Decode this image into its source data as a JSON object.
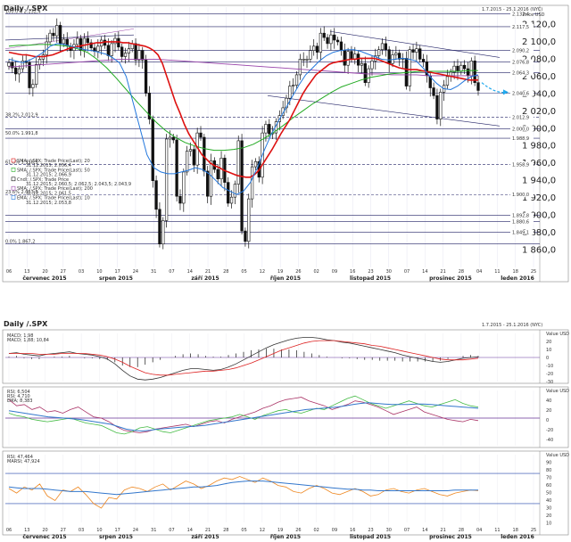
{
  "main_panel": {
    "title": "Daily /.SPX",
    "date_range": "1.7.2015 - 25.1.2016 (NYC)",
    "y_unit_label": "Price\nUSD",
    "legend": [
      "SMA; /.SPX; Trade Price(Last); 20",
      "31.12.2015; 2.056,4",
      "SMA; /.SPX; Trade Price(Last); 50",
      "31.12.2015; 2.066,9",
      "Cndl; /.SPX; Trade Price",
      "31.12.2015; 2.060,5; 2.062,5; 2.043,5; 2.043,9",
      "SMA; /.SPX; Trade Price(Last); 200",
      "31.12.2015; 2.061,5",
      "EMA; /.SPX; Trade Price(Last); 10",
      "31.12.2015; 2.053,8"
    ]
  },
  "macd_panel": {
    "title": "Daily /.SPX",
    "date_range": "1.7.2015 - 25.1.2016 (NYC)",
    "legend": [
      "MACD; 1,98",
      "MACD; 1,88; 10,84"
    ],
    "ticks": [
      "Value\nUSD",
      "20",
      "10",
      "0",
      "-10",
      "-20",
      "-30"
    ]
  },
  "rsi_panel": {
    "legend": [
      "RSI; 6,504",
      "RSI; 4,710",
      "EMA; 8,383"
    ],
    "ticks": [
      "Value\nUSD",
      "40",
      "20",
      "0",
      "-20",
      "-40"
    ]
  },
  "stoch_panel": {
    "legend": [
      "RSI; 47,464",
      "MARSI; 47,924"
    ],
    "ticks": [
      "Value\nUSD",
      "90",
      "80",
      "70",
      "60",
      "50",
      "40",
      "30",
      "20",
      "10"
    ]
  },
  "fib_labels": [
    "100.0%  2.132,4",
    "38.2%  2.012,9",
    "50.0%  1.991,8",
    "61.8%  1.958,9",
    "23.6%  2.053,8",
    "0.0%  1.867,2"
  ],
  "price_labels": [
    "2.132,4",
    "2.117,5",
    "2.090,2",
    "2.076,8",
    "2.064,3",
    "2.040,6",
    "2.012,9",
    "2.000,0",
    "1.988,9",
    "1.958,9",
    "1.900,0",
    "1.892,8",
    "1.880,6",
    "1.849,1"
  ],
  "x_axis": {
    "day_ticks": [
      "06",
      "13",
      "20",
      "27",
      "03",
      "10",
      "17",
      "24",
      "31",
      "07",
      "14",
      "21",
      "28",
      "05",
      "12",
      "19",
      "26",
      "02",
      "09",
      "16",
      "23",
      "30",
      "07",
      "14",
      "21",
      "28",
      "04",
      "11",
      "18",
      "25"
    ],
    "months": [
      "červenec 2015",
      "srpen 2015",
      "září 2015",
      "říjen 2015",
      "listopad 2015",
      "prosinec 2015",
      "leden 2016"
    ]
  },
  "colors": {
    "sma20": "#dd1111",
    "sma50": "#22aa22",
    "sma200": "#9944aa",
    "ema10": "#2277dd",
    "candle": "#111111",
    "arrow": "#22aaee",
    "level_line": "#222266"
  },
  "chart_data": {
    "type": "candlestick",
    "title": "Daily /.SPX",
    "ylim": [
      1840,
      2140
    ],
    "y_ticks": [
      1860,
      1880,
      1900,
      1920,
      1940,
      1960,
      1980,
      2000,
      2020,
      2040,
      2060,
      2080,
      2100,
      2120
    ],
    "y_tick_labels": [
      "1 860,0",
      "1 880,0",
      "1 900,0",
      "1 920,0",
      "1 940,0",
      "1 960,0",
      "1 980,0",
      "2 000,0",
      "2 020,0",
      "2 040,0",
      "2 060,0",
      "2 080,0",
      "2 100,0",
      "2 120,0"
    ],
    "levels": [
      2132.4,
      2117.5,
      2090.2,
      2076.8,
      2064.3,
      2040.6,
      2012.9,
      2000.0,
      1988.9,
      1958.9,
      1924,
      1900.0,
      1892.8,
      1880.6,
      1867.2
    ],
    "dashed_levels": [
      2012.9,
      1958.9,
      1924
    ],
    "closes": [
      2076,
      2070,
      2063,
      2069,
      2078,
      2076,
      2047,
      2051,
      2074,
      2080,
      2085,
      2100,
      2110,
      2107,
      2119,
      2098,
      2103,
      2095,
      2090,
      2097,
      2104,
      2090,
      2104,
      2099,
      2093,
      2089,
      2095,
      2102,
      2096,
      2084,
      2098,
      2104,
      2094,
      2083,
      2087,
      2092,
      2098,
      2079,
      2090,
      2079,
      2041,
      2011,
      1940,
      1907,
      1867,
      1894,
      1988,
      1990,
      1987,
      1922,
      1914,
      1950,
      1974,
      1976,
      1958,
      1995,
      1990,
      1951,
      1922,
      1963,
      1953,
      1942,
      1966,
      1938,
      1914,
      1921,
      1936,
      1986,
      1882,
      1870,
      1919,
      1956,
      1962,
      1944,
      1995,
      2005,
      1994,
      1995,
      2008,
      2015,
      2024,
      2035,
      2049,
      2050,
      2062,
      2080,
      2080,
      2080,
      2090,
      2095,
      2088,
      2110,
      2105,
      2098,
      2108,
      2102,
      2100,
      2090,
      2073,
      2089,
      2080,
      2086,
      2073,
      2075,
      2053,
      2069,
      2078,
      2084,
      2091,
      2098,
      2091,
      2075,
      2085,
      2087,
      2080,
      2081,
      2049,
      2091,
      2088,
      2092,
      2080,
      2077,
      2061,
      2047,
      2038,
      2011,
      2042,
      2050,
      2060,
      2065,
      2072,
      2066,
      2073,
      2069,
      2061,
      2078,
      2053,
      2044
    ],
    "sma20": [
      2088,
      2087,
      2086,
      2085,
      2085,
      2084,
      2083,
      2083,
      2083,
      2084,
      2085,
      2087,
      2089,
      2091,
      2093,
      2094,
      2095,
      2096,
      2097,
      2098,
      2099,
      2099,
      2100,
      2100,
      2100,
      2100,
      2099,
      2099,
      2098,
      2097,
      2096,
      2095,
      2093,
      2090,
      2085,
      2075,
      2060,
      2045,
      2030,
      2018,
      2005,
      1994,
      1986,
      1978,
      1970,
      1965,
      1960,
      1957,
      1955,
      1952,
      1950,
      1948,
      1946,
      1945,
      1944,
      1944,
      1947,
      1952,
      1960,
      1968,
      1976,
      1985,
      1994,
      2002,
      2010,
      2020,
      2030,
      2040,
      2048,
      2055,
      2062,
      2066,
      2070,
      2074,
      2076,
      2077,
      2078,
      2079,
      2080,
      2080,
      2081,
      2081,
      2081,
      2081,
      2080,
      2078,
      2076,
      2074,
      2072,
      2070,
      2069,
      2068,
      2068,
      2068,
      2067,
      2066,
      2065,
      2064,
      2063,
      2062,
      2061,
      2060,
      2059,
      2058,
      2057,
      2056,
      2056,
      2056
    ],
    "sma50": [
      2095,
      2096,
      2096,
      2097,
      2097,
      2096,
      2095,
      2092,
      2088,
      2080,
      2070,
      2058,
      2045,
      2032,
      2020,
      2008,
      1998,
      1990,
      1984,
      1980,
      1977,
      1975,
      1975,
      1976,
      1978,
      1982,
      1988,
      1995,
      2003,
      2012,
      2020,
      2028,
      2035,
      2042,
      2048,
      2052,
      2056,
      2059,
      2061,
      2063,
      2064,
      2065,
      2066,
      2066,
      2066,
      2066,
      2066,
      2067,
      2067
    ],
    "sma200": [
      2071,
      2072,
      2073,
      2074,
      2075,
      2076,
      2077,
      2078,
      2079,
      2080,
      2080,
      2080,
      2080,
      2079,
      2078,
      2077,
      2076,
      2075,
      2074,
      2073,
      2072,
      2071,
      2070,
      2069,
      2068,
      2067,
      2066,
      2065,
      2064,
      2063,
      2063,
      2062,
      2062,
      2062,
      2061,
      2061,
      2061,
      2061,
      2061
    ],
    "ema10": [
      2080,
      2078,
      2076,
      2079,
      2083,
      2088,
      2095,
      2098,
      2097,
      2095,
      2093,
      2091,
      2090,
      2088,
      2086,
      2082,
      2076,
      2060,
      2030,
      2000,
      1970,
      1955,
      1950,
      1948,
      1948,
      1950,
      1952,
      1955,
      1953,
      1948,
      1940,
      1932,
      1928,
      1924,
      1928,
      1938,
      1955,
      1975,
      1993,
      2008,
      2022,
      2036,
      2050,
      2062,
      2070,
      2078,
      2084,
      2088,
      2090,
      2091,
      2091,
      2089,
      2086,
      2083,
      2080,
      2079,
      2080,
      2081,
      2080,
      2078,
      2070,
      2060,
      2052,
      2046,
      2045,
      2049,
      2055,
      2060,
      2062
    ],
    "forecast_arrow": [
      2053,
      2042
    ],
    "subpanels": [
      {
        "name": "MACD",
        "ylim": [
          -30,
          30
        ],
        "macd": [
          5,
          6,
          4,
          3,
          2,
          4,
          5,
          6,
          7,
          5,
          4,
          3,
          1,
          -2,
          -8,
          -16,
          -23,
          -27,
          -28,
          -27,
          -25,
          -22,
          -19,
          -16,
          -14,
          -14,
          -15,
          -16,
          -15,
          -12,
          -8,
          -3,
          2,
          7,
          12,
          16,
          19,
          22,
          24,
          25,
          25,
          24,
          22,
          21,
          19,
          18,
          16,
          14,
          12,
          10,
          8,
          6,
          3,
          1,
          -1,
          -3,
          -5,
          -6,
          -5,
          -3,
          -1,
          0,
          1
        ],
        "signal": [
          5,
          5,
          5,
          5,
          4,
          4,
          4,
          5,
          5,
          5,
          5,
          4,
          3,
          1,
          -2,
          -6,
          -11,
          -15,
          -19,
          -21,
          -22,
          -22,
          -21,
          -20,
          -19,
          -18,
          -17,
          -17,
          -16,
          -15,
          -13,
          -10,
          -7,
          -3,
          1,
          5,
          9,
          12,
          15,
          18,
          20,
          21,
          21,
          21,
          20,
          19,
          18,
          17,
          15,
          14,
          12,
          10,
          8,
          6,
          4,
          2,
          0,
          -2,
          -3,
          -3,
          -3,
          -2,
          -1
        ],
        "histogram": [
          1,
          2,
          -1,
          -2,
          -2,
          0,
          1,
          1,
          2,
          0,
          -1,
          -1,
          -2,
          -3,
          -6,
          -10,
          -12,
          -12,
          -9,
          -6,
          -3,
          0,
          2,
          4,
          5,
          4,
          2,
          1,
          1,
          3,
          5,
          7,
          9,
          10,
          11,
          11,
          10,
          10,
          9,
          7,
          5,
          3,
          1,
          0,
          -1,
          -1,
          -2,
          -3,
          -3,
          -4,
          -4,
          -4,
          -5,
          -5,
          -5,
          -5,
          -5,
          -4,
          -2,
          0,
          2,
          3,
          2
        ]
      },
      {
        "name": "RSI",
        "ylim": [
          -45,
          45
        ],
        "series_a": [
          30,
          20,
          22,
          14,
          18,
          10,
          12,
          8,
          14,
          18,
          10,
          2,
          0,
          -6,
          -14,
          -20,
          -22,
          -24,
          -22,
          -18,
          -16,
          -14,
          -12,
          -10,
          -14,
          -10,
          -6,
          -4,
          -8,
          -2,
          2,
          6,
          10,
          16,
          20,
          26,
          30,
          32,
          34,
          28,
          24,
          20,
          14,
          18,
          22,
          28,
          26,
          22,
          18,
          12,
          6,
          10,
          14,
          18,
          10,
          6,
          2,
          -2,
          -4,
          -6,
          -2,
          -4
        ],
        "series_b": [
          8,
          4,
          2,
          -2,
          -4,
          -6,
          -4,
          -2,
          0,
          -4,
          -8,
          -10,
          -12,
          -18,
          -24,
          -26,
          -22,
          -16,
          -14,
          -18,
          -22,
          -24,
          -20,
          -16,
          -12,
          -8,
          -4,
          -2,
          0,
          2,
          6,
          2,
          -2,
          4,
          8,
          12,
          14,
          10,
          8,
          12,
          16,
          14,
          20,
          26,
          32,
          36,
          30,
          24,
          20,
          16,
          20,
          24,
          28,
          24,
          20,
          18,
          22,
          26,
          30,
          24,
          20,
          18
        ],
        "series_c": [
          12,
          10,
          8,
          6,
          4,
          2,
          1,
          0,
          -1,
          -2,
          -4,
          -6,
          -8,
          -10,
          -14,
          -18,
          -20,
          -21,
          -20,
          -18,
          -17,
          -16,
          -15,
          -14,
          -13,
          -12,
          -10,
          -8,
          -6,
          -4,
          -2,
          0,
          2,
          4,
          6,
          8,
          10,
          12,
          14,
          15,
          16,
          17,
          18,
          20,
          22,
          24,
          25,
          24,
          23,
          22,
          22,
          22,
          23,
          23,
          22,
          21,
          20,
          19,
          18,
          17,
          16
        ]
      },
      {
        "name": "RSI / MARSI",
        "ylim": [
          5,
          95
        ],
        "rsi": [
          50,
          44,
          52,
          48,
          56,
          40,
          34,
          48,
          46,
          52,
          42,
          30,
          24,
          38,
          36,
          48,
          52,
          50,
          46,
          52,
          56,
          48,
          54,
          60,
          56,
          50,
          54,
          60,
          64,
          62,
          66,
          62,
          58,
          64,
          60,
          54,
          52,
          46,
          44,
          50,
          54,
          50,
          44,
          42,
          46,
          50,
          46,
          40,
          42,
          48,
          50,
          46,
          44,
          48,
          50,
          46,
          42,
          40,
          44,
          46,
          48,
          47
        ],
        "marsi": [
          52,
          51,
          50,
          50,
          50,
          49,
          48,
          47,
          46,
          46,
          46,
          45,
          44,
          43,
          42,
          43,
          44,
          45,
          46,
          47,
          48,
          49,
          50,
          51,
          52,
          52,
          53,
          54,
          56,
          58,
          59,
          60,
          60,
          60,
          59,
          58,
          57,
          56,
          55,
          54,
          53,
          52,
          51,
          50,
          49,
          49,
          48,
          48,
          47,
          47,
          47,
          47,
          47,
          47,
          47,
          47,
          47,
          47,
          48,
          48,
          48,
          48
        ]
      }
    ]
  }
}
